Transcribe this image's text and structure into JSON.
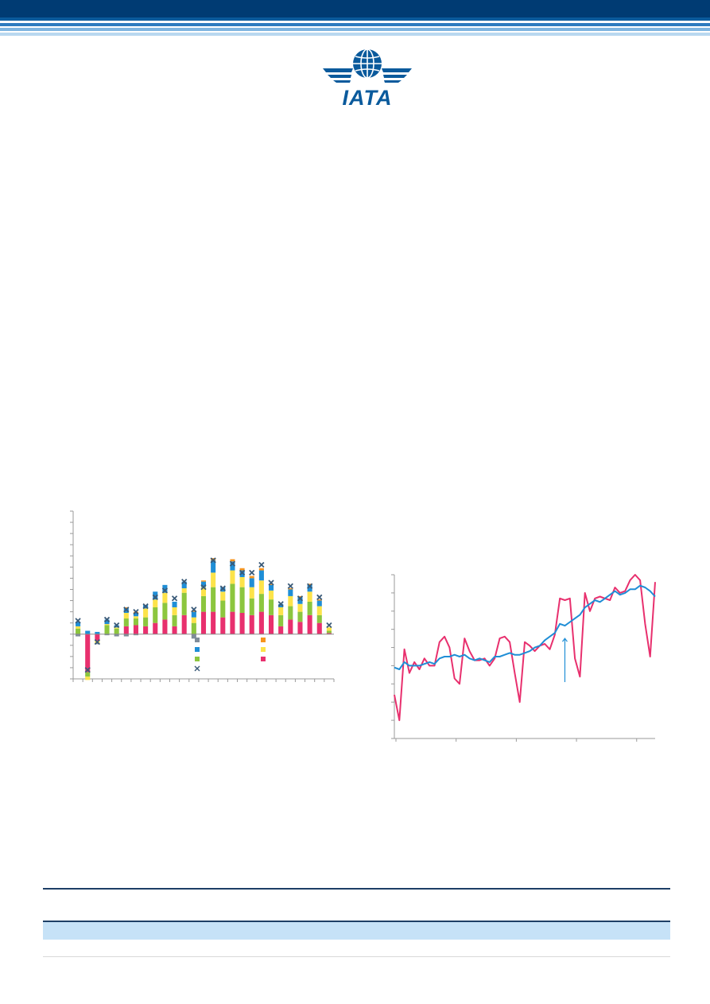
{
  "brand": {
    "logo_text": "IATA",
    "navy": "#003b73",
    "blue": "#1f8ed6",
    "light_blue": "#c6e2f7"
  },
  "chart_data": [
    {
      "type": "bar",
      "stacked": true,
      "title": "",
      "xlabel": "",
      "ylabel": "",
      "grid": false,
      "legend": "bottom-center",
      "ylim": [
        -4,
        11
      ],
      "series": [
        {
          "color": "#e8306e",
          "values": [
            0,
            -3.4,
            -0.6,
            0,
            0,
            0.7,
            0.8,
            0.7,
            1.0,
            1.3,
            0.7,
            1.7,
            0,
            2.0,
            2.0,
            1.5,
            2.0,
            1.9,
            1.7,
            2.0,
            1.7,
            0.7,
            1.3,
            1.1,
            1.7,
            1.0,
            0.1
          ]
        },
        {
          "color": "#8cc63e",
          "values": [
            0.5,
            -0.4,
            0,
            0.8,
            0.5,
            0.7,
            0.6,
            0.8,
            1.4,
            1.5,
            1.0,
            2.0,
            1.0,
            1.4,
            2.2,
            1.5,
            2.5,
            2.3,
            1.5,
            1.6,
            1.4,
            1.0,
            1.2,
            0.9,
            1.2,
            0.7,
            0.2
          ]
        },
        {
          "color": "#fce34a",
          "values": [
            0.2,
            -0.3,
            -0.2,
            0.1,
            0.1,
            0.5,
            0.2,
            0.8,
            0.7,
            0.9,
            0.7,
            0.4,
            0.5,
            0.8,
            1.3,
            0.8,
            1.2,
            0.9,
            1.0,
            1.2,
            0.8,
            0.7,
            0.9,
            0.7,
            0.9,
            0.8,
            0.3
          ]
        },
        {
          "color": "#1f8ed6",
          "values": [
            0.4,
            0.3,
            0.2,
            0.4,
            0.2,
            0.4,
            0.3,
            0.3,
            0.7,
            0.7,
            0.5,
            0.6,
            0.5,
            0.5,
            1.1,
            0.4,
            0.8,
            0.6,
            0.8,
            0.9,
            0.5,
            0.3,
            0.6,
            0.6,
            0.6,
            0.5,
            0
          ]
        },
        {
          "color": "#f7941d",
          "values": [
            0,
            0,
            0,
            0,
            0,
            0.1,
            0.1,
            0,
            0,
            0,
            0,
            0,
            0.1,
            0.1,
            0.2,
            0,
            0.2,
            0.2,
            0.2,
            0.2,
            0.1,
            0,
            0.1,
            0.1,
            0.1,
            0.1,
            0
          ]
        },
        {
          "color": "#7f8c99",
          "values": [
            -0.2,
            0,
            -0.1,
            -0.1,
            -0.2,
            -0.2,
            -0.1,
            0,
            0,
            0,
            0,
            0,
            -0.4,
            0,
            0,
            0,
            0,
            0,
            0,
            0,
            0,
            0,
            0,
            0,
            0,
            0,
            0
          ]
        }
      ],
      "totals": [
        1.2,
        -3.2,
        -0.7,
        1.3,
        0.8,
        2.2,
        2.0,
        2.5,
        3.3,
        3.9,
        3.2,
        4.7,
        2.2,
        4.2,
        6.6,
        4.1,
        6.3,
        5.5,
        5.5,
        6.2,
        4.6,
        2.7,
        4.3,
        3.2,
        4.3,
        3.3,
        0.8
      ],
      "totals_color": "#3a5a78"
    },
    {
      "type": "line",
      "title": "",
      "xlabel": "",
      "ylabel": "",
      "grid": false,
      "ylim": [
        0,
        9
      ],
      "series": [
        {
          "color": "#e8306e",
          "values": [
            2.4,
            1.0,
            4.9,
            3.6,
            4.2,
            3.8,
            4.4,
            4.0,
            4.0,
            5.3,
            5.6,
            5.0,
            3.3,
            3.0,
            5.5,
            4.8,
            4.3,
            4.3,
            4.4,
            4.0,
            4.4,
            5.5,
            5.6,
            5.3,
            3.6,
            2.0,
            5.3,
            5.1,
            4.8,
            5.1,
            5.2,
            4.9,
            5.7,
            7.7,
            7.6,
            7.7,
            4.4,
            3.4,
            8.0,
            7.0,
            7.7,
            7.8,
            7.7,
            7.6,
            8.3,
            8.0,
            8.1,
            8.7,
            9.0,
            8.7,
            6.3,
            4.5,
            8.6
          ]
        },
        {
          "color": "#1f8ed6",
          "values": [
            3.9,
            3.8,
            4.2,
            4.0,
            4.0,
            4.0,
            4.1,
            4.2,
            4.1,
            4.4,
            4.5,
            4.5,
            4.6,
            4.5,
            4.6,
            4.4,
            4.3,
            4.4,
            4.3,
            4.2,
            4.5,
            4.5,
            4.6,
            4.7,
            4.6,
            4.6,
            4.7,
            4.8,
            5.0,
            5.1,
            5.4,
            5.6,
            5.8,
            6.3,
            6.2,
            6.4,
            6.6,
            6.8,
            7.2,
            7.4,
            7.6,
            7.5,
            7.7,
            7.9,
            8.1,
            7.9,
            8.0,
            8.2,
            8.2,
            8.4,
            8.3,
            8.1,
            7.8
          ]
        }
      ]
    }
  ]
}
